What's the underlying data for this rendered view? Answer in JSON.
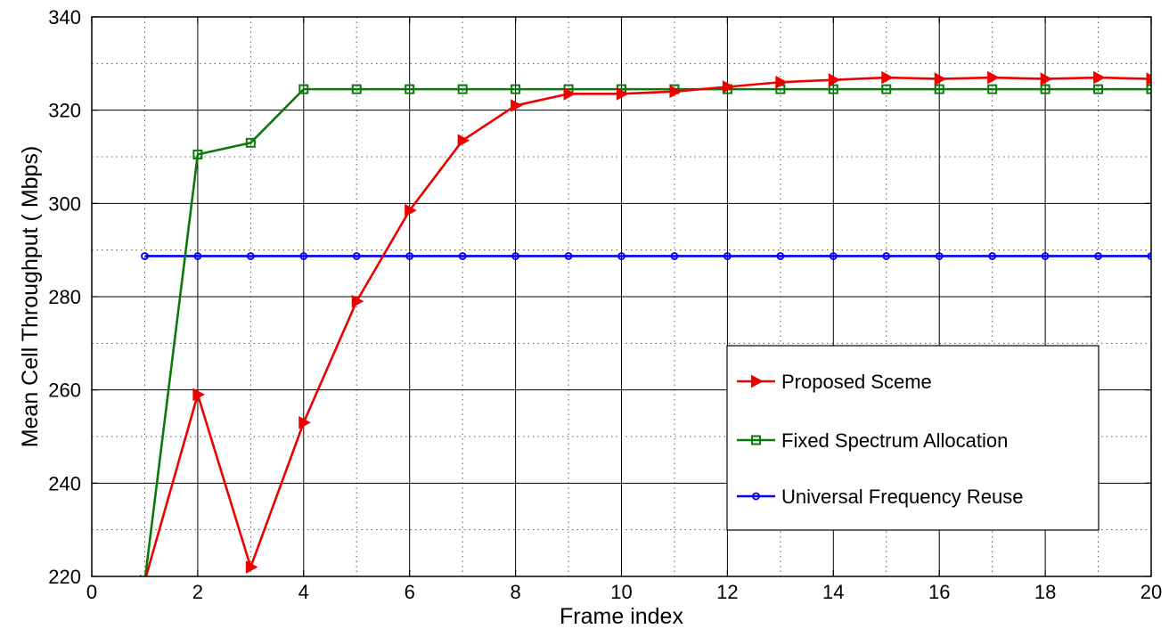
{
  "chart_data": {
    "type": "line",
    "title": "",
    "xlabel": "Frame index",
    "ylabel": "Mean Cell Throughput ( Mbps)",
    "xlim": [
      0,
      20
    ],
    "ylim": [
      220,
      340
    ],
    "xticks": [
      0,
      2,
      4,
      6,
      8,
      10,
      12,
      14,
      16,
      18,
      20
    ],
    "yticks": [
      220,
      240,
      260,
      280,
      300,
      320,
      340
    ],
    "grid": true,
    "legend_position": "lower-right",
    "x": [
      1,
      2,
      3,
      4,
      5,
      6,
      7,
      8,
      9,
      10,
      11,
      12,
      13,
      14,
      15,
      16,
      17,
      18,
      19,
      20
    ],
    "series": [
      {
        "name": "Proposed Sceme",
        "color": "#ee0000",
        "marker": "triangle-right",
        "values": [
          219,
          259,
          222,
          253,
          279,
          298.5,
          313.5,
          321,
          323.5,
          323.5,
          324,
          325,
          326,
          326.5,
          327,
          326.7,
          327,
          326.7,
          327,
          326.7
        ]
      },
      {
        "name": "Fixed Spectrum Allocation",
        "color": "#0a7a0a",
        "marker": "square",
        "values": [
          219,
          310.5,
          313,
          324.5,
          324.5,
          324.5,
          324.5,
          324.5,
          324.5,
          324.5,
          324.5,
          324.5,
          324.5,
          324.5,
          324.5,
          324.5,
          324.5,
          324.5,
          324.5,
          324.5
        ]
      },
      {
        "name": "Universal Frequency Reuse",
        "color": "#0000ee",
        "marker": "circle",
        "values": [
          288.7,
          288.7,
          288.7,
          288.7,
          288.7,
          288.7,
          288.7,
          288.7,
          288.7,
          288.7,
          288.7,
          288.7,
          288.7,
          288.7,
          288.7,
          288.7,
          288.7,
          288.7,
          288.7,
          288.7
        ]
      }
    ]
  }
}
